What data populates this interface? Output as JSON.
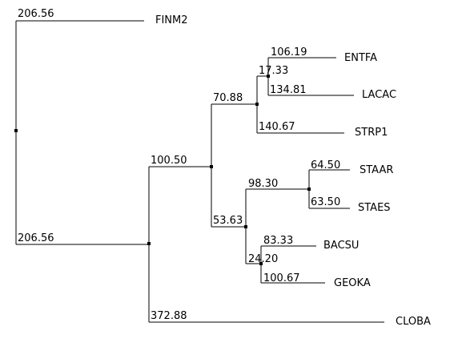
{
  "tree": {
    "leaves": [
      {
        "id": "finm2",
        "name": "FINM2",
        "branch": "206.56"
      },
      {
        "id": "entfa",
        "name": "ENTFA",
        "branch": "106.19"
      },
      {
        "id": "lacac",
        "name": "LACAC",
        "branch": "134.81"
      },
      {
        "id": "strp1",
        "name": "STRP1",
        "branch": "140.67"
      },
      {
        "id": "staar",
        "name": "STAAR",
        "branch": "64.50"
      },
      {
        "id": "staes",
        "name": "STAES",
        "branch": "63.50"
      },
      {
        "id": "bacsu",
        "name": "BACSU",
        "branch": "83.33"
      },
      {
        "id": "geoka",
        "name": "GEOKA",
        "branch": "100.67"
      },
      {
        "id": "cloba",
        "name": "CLOBA",
        "branch": "372.88"
      }
    ],
    "internal": [
      {
        "id": "main",
        "branch": "206.56"
      },
      {
        "id": "firmicutes",
        "branch": "100.50"
      },
      {
        "id": "lacto",
        "branch": "70.88"
      },
      {
        "id": "entlac",
        "branch": "17.33"
      },
      {
        "id": "bacillales",
        "branch": "53.63"
      },
      {
        "id": "staph",
        "branch": "98.30"
      },
      {
        "id": "bacgeo",
        "branch": "24.20"
      }
    ]
  }
}
